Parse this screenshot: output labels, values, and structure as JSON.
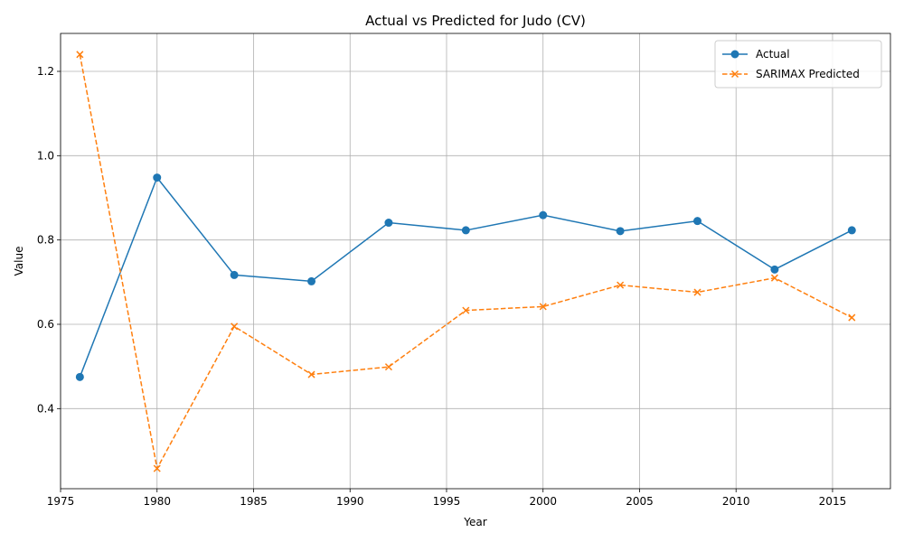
{
  "chart_data": {
    "type": "line",
    "title": "Actual vs Predicted for Judo (CV)",
    "xlabel": "Year",
    "ylabel": "Value",
    "xlim": [
      1975,
      2018
    ],
    "ylim": [
      0.21,
      1.29
    ],
    "xticks": [
      1975,
      1980,
      1985,
      1990,
      1995,
      2000,
      2005,
      2010,
      2015
    ],
    "xtick_labels": [
      "1975",
      "1980",
      "1985",
      "1990",
      "1995",
      "2000",
      "2005",
      "2010",
      "2015"
    ],
    "yticks": [
      0.4,
      0.6,
      0.8,
      1.0,
      1.2
    ],
    "ytick_labels": [
      "0.4",
      "0.6",
      "0.8",
      "1.0",
      "1.2"
    ],
    "grid": true,
    "legend_position": "top-right",
    "x": [
      1976,
      1980,
      1984,
      1988,
      1992,
      1996,
      2000,
      2004,
      2008,
      2012,
      2016
    ],
    "series": [
      {
        "name": "Actual",
        "color": "#1f77b4",
        "linestyle": "solid",
        "marker": "circle",
        "values": [
          0.475,
          0.948,
          0.717,
          0.702,
          0.841,
          0.823,
          0.859,
          0.821,
          0.845,
          0.73,
          0.823
        ]
      },
      {
        "name": "SARIMAX Predicted",
        "color": "#ff7f0e",
        "linestyle": "dashed",
        "marker": "x",
        "values": [
          1.24,
          0.258,
          0.595,
          0.481,
          0.499,
          0.633,
          0.642,
          0.693,
          0.676,
          0.71,
          0.616
        ]
      }
    ]
  }
}
